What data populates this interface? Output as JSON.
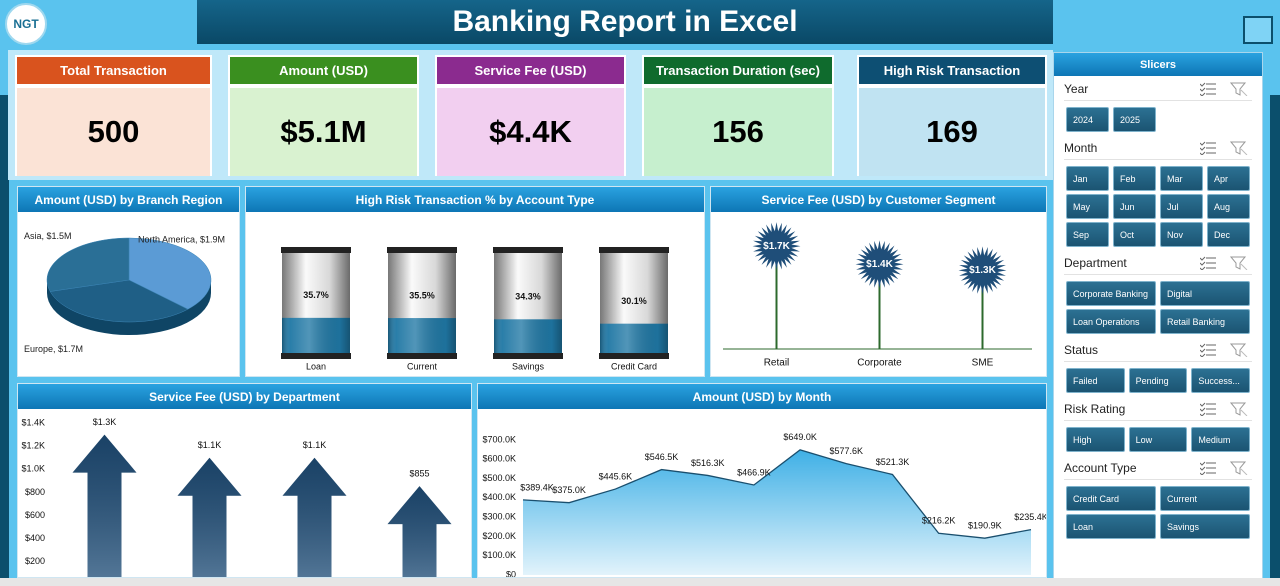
{
  "header": {
    "title": "Banking Report in Excel",
    "logo": "NGT"
  },
  "kpis": [
    {
      "label": "Total Transaction",
      "value": "500"
    },
    {
      "label": "Amount (USD)",
      "value": "$5.1M"
    },
    {
      "label": "Service Fee (USD)",
      "value": "$4.4K"
    },
    {
      "label": "Transaction Duration (sec)",
      "value": "156"
    },
    {
      "label": "High Risk Transaction",
      "value": "169"
    }
  ],
  "chart_data": [
    {
      "type": "pie",
      "title": "Amount (USD) by Branch Region",
      "values": [
        1900000,
        1700000,
        1500000
      ],
      "value_labels": [
        "North America, $1.9M",
        "Europe, $1.7M",
        "Asia, $1.5M"
      ],
      "colors": [
        "#5b9bd5",
        "#1f5f86",
        "#2a6f96"
      ]
    },
    {
      "type": "cylinder",
      "title": "High Risk Transaction % by Account Type",
      "categories": [
        "Loan",
        "Current",
        "Savings",
        "Credit Card"
      ],
      "values": [
        35.7,
        35.5,
        34.3,
        30.1
      ],
      "value_labels": [
        "35.7%",
        "35.5%",
        "34.3%",
        "30.1%"
      ],
      "ylim": [
        0,
        100
      ],
      "color": "#1f77a4"
    },
    {
      "type": "lollipop",
      "title": "Service Fee (USD) by Customer Segment",
      "categories": [
        "Retail",
        "Corporate",
        "SME"
      ],
      "values": [
        1700,
        1400,
        1300
      ],
      "value_labels": [
        "$1.7K",
        "$1.4K",
        "$1.3K"
      ],
      "ylim": [
        0,
        2000
      ],
      "color": "#1f4e79",
      "stem_color": "#2d6a2d"
    },
    {
      "type": "arrow",
      "title": "Service Fee (USD) by Department",
      "categories": [
        null,
        null,
        null,
        null
      ],
      "values": [
        1300,
        1100,
        1100,
        855
      ],
      "value_labels": [
        "$1.3K",
        "$1.1K",
        "$1.1K",
        "$855"
      ],
      "ylim": [
        0,
        1400
      ],
      "yticks": [
        {
          "value": 1400,
          "label": "$1.4K"
        },
        {
          "value": 1200,
          "label": "$1.2K"
        },
        {
          "value": 1000,
          "label": "$1.0K"
        },
        {
          "value": 800,
          "label": "$800"
        },
        {
          "value": 600,
          "label": "$600"
        },
        {
          "value": 400,
          "label": "$400"
        },
        {
          "value": 200,
          "label": "$200"
        }
      ],
      "color": "#1f4e79"
    },
    {
      "type": "area",
      "title": "Amount (USD) by Month",
      "categories": [
        null,
        null,
        null,
        null,
        null,
        null,
        null,
        null,
        null,
        null,
        null,
        null
      ],
      "values": [
        389400,
        375000,
        445600,
        546500,
        516300,
        466900,
        649000,
        577600,
        521300,
        216200,
        190900,
        235400
      ],
      "value_labels": [
        "$389.4K",
        "$375.0K",
        "$445.6K",
        "$546.5K",
        "$516.3K",
        "$466.9K",
        "$649.0K",
        "$577.6K",
        "$521.3K",
        "$216.2K",
        "$190.9K",
        "$235.4K"
      ],
      "ylim": [
        0,
        700000
      ],
      "yticks": [
        {
          "value": 0,
          "label": "$0"
        },
        {
          "value": 100000,
          "label": "$100.0K"
        },
        {
          "value": 200000,
          "label": "$200.0K"
        },
        {
          "value": 300000,
          "label": "$300.0K"
        },
        {
          "value": 400000,
          "label": "$400.0K"
        },
        {
          "value": 500000,
          "label": "$500.0K"
        },
        {
          "value": 600000,
          "label": "$600.0K"
        },
        {
          "value": 700000,
          "label": "$700.0K"
        }
      ],
      "color": "#1a4f6e",
      "fill": "#3fb0e6"
    }
  ],
  "slicers": {
    "title": "Slicers",
    "groups": [
      {
        "name": "Year",
        "items": [
          "2024",
          "2025"
        ]
      },
      {
        "name": "Month",
        "items": [
          "Jan",
          "Feb",
          "Mar",
          "Apr",
          "May",
          "Jun",
          "Jul",
          "Aug",
          "Sep",
          "Oct",
          "Nov",
          "Dec"
        ]
      },
      {
        "name": "Department",
        "items": [
          "Corporate Banking",
          "Digital",
          "Loan Operations",
          "Retail Banking"
        ]
      },
      {
        "name": "Status",
        "items": [
          "Failed",
          "Pending",
          "Success..."
        ]
      },
      {
        "name": "Risk Rating",
        "items": [
          "High",
          "Low",
          "Medium"
        ]
      },
      {
        "name": "Account Type",
        "items": [
          "Credit Card",
          "Current",
          "Loan",
          "Savings"
        ]
      }
    ]
  }
}
